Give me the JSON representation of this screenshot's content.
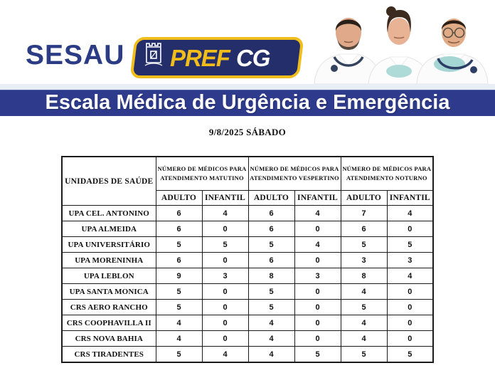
{
  "header": {
    "sesau": "SESAU",
    "prefcg_pref": "PREF",
    "prefcg_cg": "CG"
  },
  "banner": {
    "title": "Escala Médica de Urgência e Emergência"
  },
  "date_heading": "9/8/2025 SÁBADO",
  "table": {
    "unit_header": "UNIDADES DE SAÚDE",
    "shift_groups": [
      "NÚMERO DE MÉDICOS PARA ATENDIMENTO MATUTINO",
      "NÚMERO DE MÉDICOS PARA ATENDIMENTO VESPERTINO",
      "NÚMERO DE MÉDICOS PARA ATENDIMENTO NOTURNO"
    ],
    "sub_headers": [
      "ADULTO",
      "INFANTIL"
    ],
    "rows": [
      {
        "unit": "UPA CEL. ANTONINO",
        "values": [
          "6",
          "4",
          "6",
          "4",
          "7",
          "4"
        ]
      },
      {
        "unit": "UPA ALMEIDA",
        "values": [
          "6",
          "0",
          "6",
          "0",
          "6",
          "0"
        ]
      },
      {
        "unit": "UPA UNIVERSITÁRIO",
        "values": [
          "5",
          "5",
          "5",
          "4",
          "5",
          "5"
        ]
      },
      {
        "unit": "UPA MORENINHA",
        "values": [
          "6",
          "0",
          "6",
          "0",
          "3",
          "3"
        ]
      },
      {
        "unit": "UPA LEBLON",
        "values": [
          "9",
          "3",
          "8",
          "3",
          "8",
          "4"
        ]
      },
      {
        "unit": "UPA SANTA MONICA",
        "values": [
          "5",
          "0",
          "5",
          "0",
          "4",
          "0"
        ]
      },
      {
        "unit": "CRS AERO RANCHO",
        "values": [
          "5",
          "0",
          "5",
          "0",
          "5",
          "0"
        ]
      },
      {
        "unit": "CRS COOPHAVILLA II",
        "values": [
          "4",
          "0",
          "4",
          "0",
          "4",
          "0"
        ]
      },
      {
        "unit": "CRS NOVA BAHIA",
        "values": [
          "4",
          "0",
          "4",
          "0",
          "4",
          "0"
        ]
      },
      {
        "unit": "CRS TIRADENTES",
        "values": [
          "5",
          "4",
          "4",
          "5",
          "5",
          "5"
        ]
      }
    ]
  },
  "colors": {
    "banner_blue": "#2e3a8c",
    "logo_navy": "#242e6b",
    "logo_yellow": "#f1bd1b",
    "sesau_blue": "#2b3c85",
    "table_border": "#1b1b1b",
    "mask_teal": "#a9d8d4"
  }
}
